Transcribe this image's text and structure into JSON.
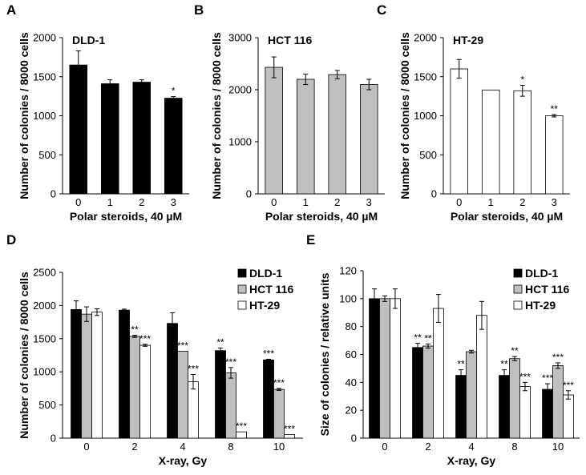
{
  "chart_data": [
    {
      "panel": "A",
      "type": "bar",
      "label_in_plot": "DLD-1",
      "xlabel": "Polar steroids, 40 µM",
      "ylabel": "Number of colonies / 8000 cells",
      "categories": [
        "0",
        "1",
        "2",
        "3"
      ],
      "ylim": [
        0,
        2000
      ],
      "yticks": [
        0,
        500,
        1000,
        1500,
        2000
      ],
      "series": [
        {
          "name": "",
          "color": "#000000",
          "values": [
            1650,
            1410,
            1430,
            1225
          ],
          "errors": [
            180,
            50,
            30,
            20
          ],
          "significance": [
            "",
            "",
            "",
            "*"
          ]
        }
      ]
    },
    {
      "panel": "B",
      "type": "bar",
      "label_in_plot": "HCT 116",
      "xlabel": "Polar steroids, 40 µM",
      "ylabel": "Number of colonies / 8000 cells",
      "categories": [
        "0",
        "1",
        "2",
        "3"
      ],
      "ylim": [
        0,
        3000
      ],
      "yticks": [
        0,
        1000,
        2000,
        3000
      ],
      "series": [
        {
          "name": "",
          "color": "#bfbfbf",
          "values": [
            2430,
            2200,
            2290,
            2100
          ],
          "errors": [
            200,
            100,
            80,
            100
          ],
          "significance": [
            "",
            "",
            "",
            ""
          ]
        }
      ]
    },
    {
      "panel": "C",
      "type": "bar",
      "label_in_plot": "HT-29",
      "xlabel": "Polar steroids, 40 µM",
      "ylabel": "Number of colonies / 8000 cells",
      "categories": [
        "0",
        "1",
        "2",
        "3"
      ],
      "ylim": [
        0,
        2000
      ],
      "yticks": [
        0,
        500,
        1000,
        1500,
        2000
      ],
      "series": [
        {
          "name": "",
          "color": "#ffffff",
          "values": [
            1600,
            1330,
            1320,
            1000
          ],
          "errors": [
            120,
            0,
            70,
            15
          ],
          "significance": [
            "",
            "",
            "*",
            "**"
          ]
        }
      ]
    },
    {
      "panel": "D",
      "type": "bar",
      "xlabel": "X-ray, Gy",
      "ylabel": "Number of colonies / 8000 cells",
      "categories": [
        "0",
        "2",
        "4",
        "8",
        "10"
      ],
      "ylim": [
        0,
        2500
      ],
      "yticks": [
        0,
        500,
        1000,
        1500,
        2000,
        2500
      ],
      "legend": "top-right",
      "series": [
        {
          "name": "DLD-1",
          "color": "#000000",
          "values": [
            1940,
            1930,
            1730,
            1320,
            1180
          ],
          "errors": [
            130,
            15,
            160,
            40,
            10
          ],
          "significance": [
            "",
            "",
            "",
            "**",
            "***"
          ]
        },
        {
          "name": "HCT 116",
          "color": "#bfbfbf",
          "values": [
            1870,
            1535,
            1310,
            985,
            735
          ],
          "errors": [
            110,
            15,
            0,
            80,
            15
          ],
          "significance": [
            "",
            "**",
            "***",
            "***",
            "***"
          ]
        },
        {
          "name": "HT-29",
          "color": "#ffffff",
          "values": [
            1900,
            1400,
            850,
            95,
            55
          ],
          "errors": [
            50,
            15,
            110,
            0,
            0
          ],
          "significance": [
            "",
            "***",
            "***",
            "***",
            "***"
          ]
        }
      ]
    },
    {
      "panel": "E",
      "type": "bar",
      "xlabel": "X-ray, Gy",
      "ylabel": "Size of colonies / relative units",
      "categories": [
        "0",
        "2",
        "4",
        "8",
        "10"
      ],
      "ylim": [
        0,
        120
      ],
      "yticks": [
        0,
        20,
        40,
        60,
        80,
        100,
        120
      ],
      "legend": "top-right",
      "series": [
        {
          "name": "DLD-1",
          "color": "#000000",
          "values": [
            100,
            65,
            45,
            45,
            35
          ],
          "errors": [
            7,
            3,
            4,
            4,
            4
          ],
          "significance": [
            "",
            "**",
            "**",
            "**",
            "***"
          ]
        },
        {
          "name": "HCT 116",
          "color": "#bfbfbf",
          "values": [
            100,
            66,
            62,
            57,
            52
          ],
          "errors": [
            2,
            1.5,
            1,
            1.5,
            2
          ],
          "significance": [
            "",
            "**",
            "",
            "**",
            "***"
          ]
        },
        {
          "name": "HT-29",
          "color": "#ffffff",
          "values": [
            100,
            93,
            88,
            37,
            31
          ],
          "errors": [
            7,
            10,
            10,
            3,
            3
          ],
          "significance": [
            "",
            "",
            "",
            "***",
            "***"
          ]
        }
      ]
    }
  ]
}
